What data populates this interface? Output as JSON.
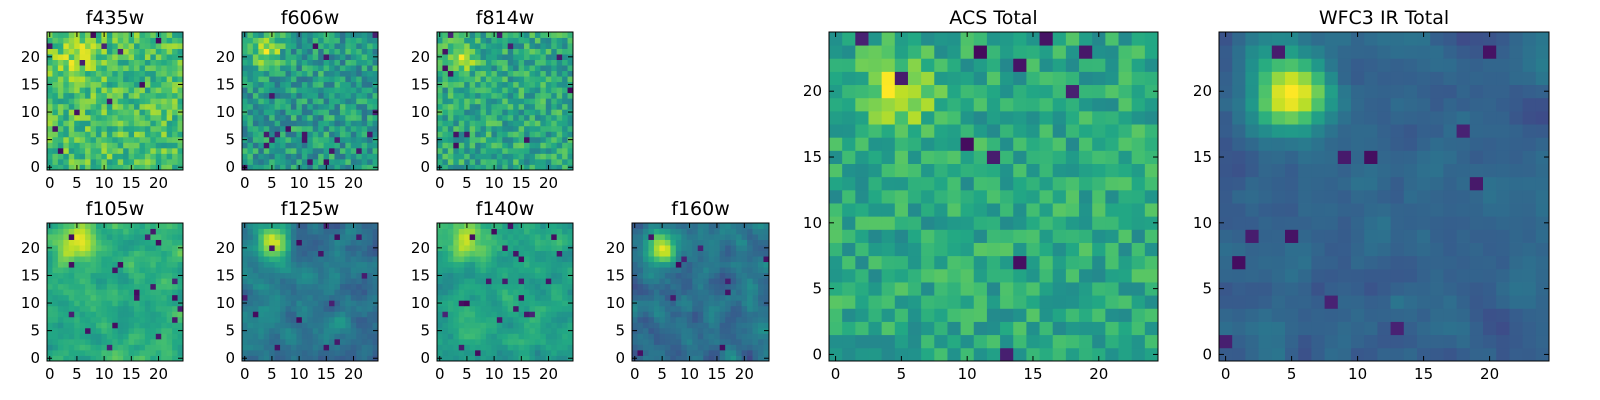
{
  "figure": {
    "background": "#ffffff",
    "colormap": "viridis"
  },
  "chart_data": [
    {
      "type": "heatmap",
      "title": "f435w",
      "grid_size": [
        25,
        25
      ],
      "xlim": [
        -0.5,
        24.5
      ],
      "ylim": [
        -0.5,
        24.5
      ],
      "xticks": [
        0,
        5,
        10,
        15,
        20
      ],
      "yticks": [
        0,
        5,
        10,
        15,
        20
      ],
      "grid": false,
      "source": {
        "style": "flat",
        "peak": [
          5,
          20
        ],
        "sigma": 2.6,
        "amplitude": 0.15,
        "base": 0.7,
        "noise": 0.17,
        "seed": 11
      }
    },
    {
      "type": "heatmap",
      "title": "f606w",
      "grid_size": [
        25,
        25
      ],
      "xlim": [
        -0.5,
        24.5
      ],
      "ylim": [
        -0.5,
        24.5
      ],
      "xticks": [
        0,
        5,
        10,
        15,
        20
      ],
      "yticks": [
        0,
        5,
        10,
        15,
        20
      ],
      "grid": false,
      "source": {
        "style": "point",
        "peak": [
          4,
          21
        ],
        "sigma": 1.8,
        "amplitude": 0.35,
        "base": 0.55,
        "noise": 0.18,
        "seed": 23
      }
    },
    {
      "type": "heatmap",
      "title": "f814w",
      "grid_size": [
        25,
        25
      ],
      "xlim": [
        -0.5,
        24.5
      ],
      "ylim": [
        -0.5,
        24.5
      ],
      "xticks": [
        0,
        5,
        10,
        15,
        20
      ],
      "yticks": [
        0,
        5,
        10,
        15,
        20
      ],
      "grid": false,
      "source": {
        "style": "point",
        "peak": [
          4,
          20
        ],
        "sigma": 2.0,
        "amplitude": 0.3,
        "base": 0.6,
        "noise": 0.17,
        "seed": 37
      }
    },
    {
      "type": "heatmap",
      "title": "f105w",
      "grid_size": [
        25,
        25
      ],
      "xlim": [
        -0.5,
        24.5
      ],
      "ylim": [
        -0.5,
        24.5
      ],
      "xticks": [
        0,
        5,
        10,
        15,
        20
      ],
      "yticks": [
        0,
        5,
        10,
        15,
        20
      ],
      "grid": false,
      "source": {
        "style": "smooth",
        "peak": [
          5,
          21
        ],
        "sigma": 2.6,
        "amplitude": 0.3,
        "base": 0.62,
        "noise": 0.15,
        "seed": 41
      }
    },
    {
      "type": "heatmap",
      "title": "f125w",
      "grid_size": [
        25,
        25
      ],
      "xlim": [
        -0.5,
        24.5
      ],
      "ylim": [
        -0.5,
        24.5
      ],
      "xticks": [
        0,
        5,
        10,
        15,
        20
      ],
      "yticks": [
        0,
        5,
        10,
        15,
        20
      ],
      "grid": false,
      "source": {
        "style": "smooth",
        "peak": [
          5,
          21
        ],
        "sigma": 2.2,
        "amplitude": 0.5,
        "base": 0.4,
        "noise": 0.14,
        "seed": 53
      }
    },
    {
      "type": "heatmap",
      "title": "f140w",
      "grid_size": [
        25,
        25
      ],
      "xlim": [
        -0.5,
        24.5
      ],
      "ylim": [
        -0.5,
        24.5
      ],
      "xticks": [
        0,
        5,
        10,
        15,
        20
      ],
      "yticks": [
        0,
        5,
        10,
        15,
        20
      ],
      "grid": false,
      "source": {
        "style": "smooth",
        "peak": [
          5,
          21
        ],
        "sigma": 2.4,
        "amplitude": 0.35,
        "base": 0.58,
        "noise": 0.14,
        "seed": 67
      }
    },
    {
      "type": "heatmap",
      "title": "f160w",
      "grid_size": [
        25,
        25
      ],
      "xlim": [
        -0.5,
        24.5
      ],
      "ylim": [
        -0.5,
        24.5
      ],
      "xticks": [
        0,
        5,
        10,
        15,
        20
      ],
      "yticks": [
        0,
        5,
        10,
        15,
        20
      ],
      "grid": false,
      "source": {
        "style": "smooth",
        "peak": [
          5,
          20
        ],
        "sigma": 2.0,
        "amplitude": 0.55,
        "base": 0.38,
        "noise": 0.15,
        "seed": 79
      }
    },
    {
      "type": "heatmap",
      "title": "ACS Total",
      "grid_size": [
        25,
        25
      ],
      "xlim": [
        -0.5,
        24.5
      ],
      "ylim": [
        -0.5,
        24.5
      ],
      "xticks": [
        0,
        5,
        10,
        15,
        20
      ],
      "yticks": [
        0,
        5,
        10,
        15,
        20
      ],
      "grid": false,
      "source": {
        "style": "point",
        "peak": [
          5,
          20
        ],
        "sigma": 1.7,
        "amplitude": 0.4,
        "base": 0.6,
        "noise": 0.14,
        "seed": 97
      }
    },
    {
      "type": "heatmap",
      "title": "WFC3 IR Total",
      "grid_size": [
        25,
        25
      ],
      "xlim": [
        -0.5,
        24.5
      ],
      "ylim": [
        -0.5,
        24.5
      ],
      "xticks": [
        0,
        5,
        10,
        15,
        20
      ],
      "yticks": [
        0,
        5,
        10,
        15,
        20
      ],
      "grid": false,
      "source": {
        "style": "smooth",
        "peak": [
          5,
          20
        ],
        "sigma": 2.0,
        "amplitude": 0.7,
        "base": 0.32,
        "noise": 0.1,
        "seed": 113
      }
    }
  ]
}
